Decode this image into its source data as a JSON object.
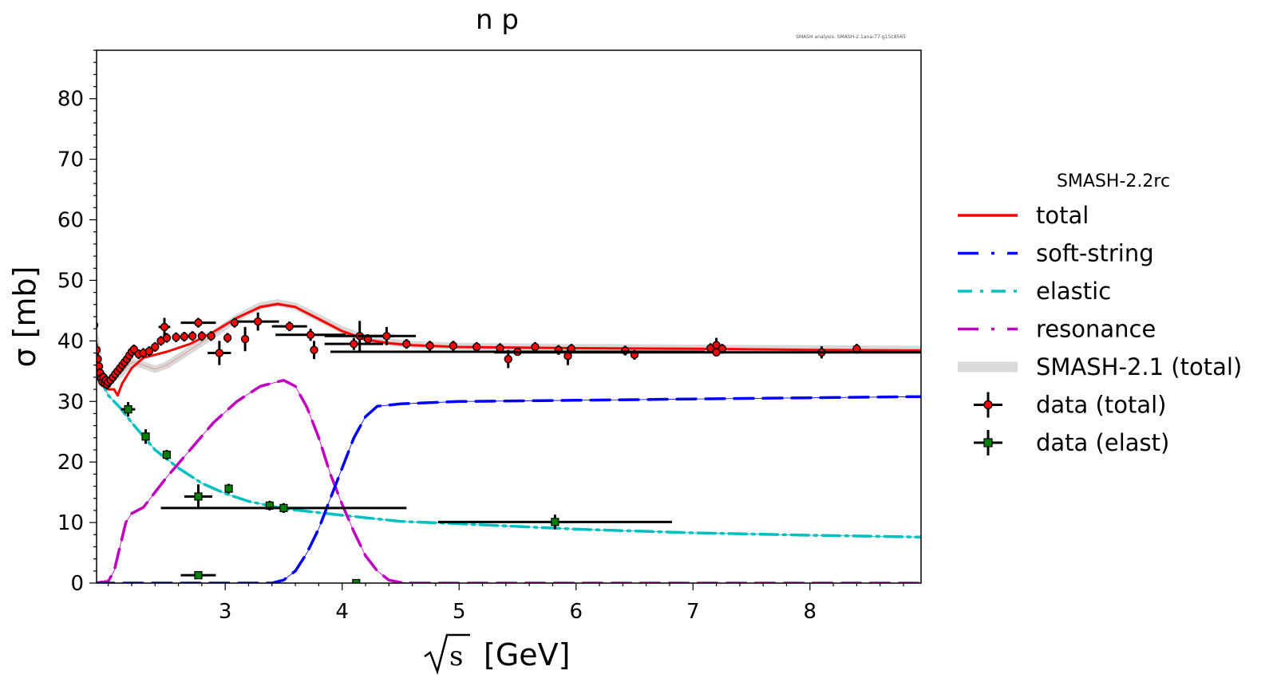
{
  "chart_data": {
    "type": "line",
    "title": "n p",
    "note": "SMASH analysis: SMASH-2.1ana-77-g15c8565",
    "xlabel": "[GeV]",
    "xlabel_symbol": "s",
    "ylabel": "σ [mb]",
    "xlim": [
      1.9,
      8.95
    ],
    "ylim": [
      0,
      88
    ],
    "x_ticks": [
      3,
      4,
      5,
      6,
      7,
      8
    ],
    "y_ticks": [
      0,
      10,
      20,
      30,
      40,
      50,
      60,
      70,
      80
    ],
    "legend_title": "SMASH-2.2rc",
    "legend_position": "outside-right",
    "series": [
      {
        "name": "total",
        "style": "solid",
        "color": "#ff0000",
        "points": [
          [
            1.885,
            41
          ],
          [
            1.95,
            33
          ],
          [
            2.0,
            32
          ],
          [
            2.05,
            32
          ],
          [
            2.08,
            31
          ],
          [
            2.12,
            33
          ],
          [
            2.2,
            35.5
          ],
          [
            2.3,
            37.2
          ],
          [
            2.5,
            38.2
          ],
          [
            2.7,
            39.5
          ],
          [
            2.9,
            41.5
          ],
          [
            3.1,
            43.8
          ],
          [
            3.3,
            45.6
          ],
          [
            3.45,
            46.1
          ],
          [
            3.6,
            45.6
          ],
          [
            3.8,
            43.6
          ],
          [
            4.0,
            41.6
          ],
          [
            4.2,
            40.2
          ],
          [
            4.4,
            39.6
          ],
          [
            4.6,
            39.3
          ],
          [
            5.0,
            39.0
          ],
          [
            6.0,
            38.8
          ],
          [
            7.0,
            38.7
          ],
          [
            8.0,
            38.5
          ],
          [
            8.95,
            38.4
          ]
        ]
      },
      {
        "name": "soft-string",
        "style": "dashed",
        "color": "#0000ff",
        "points": [
          [
            1.885,
            0
          ],
          [
            3.4,
            0
          ],
          [
            3.5,
            0.5
          ],
          [
            3.6,
            2
          ],
          [
            3.7,
            5
          ],
          [
            3.8,
            9
          ],
          [
            3.9,
            14
          ],
          [
            4.0,
            19
          ],
          [
            4.1,
            24
          ],
          [
            4.2,
            27.5
          ],
          [
            4.3,
            29.2
          ],
          [
            4.5,
            29.6
          ],
          [
            5.0,
            30.0
          ],
          [
            6.0,
            30.2
          ],
          [
            7.0,
            30.4
          ],
          [
            8.0,
            30.6
          ],
          [
            8.95,
            30.8
          ]
        ]
      },
      {
        "name": "elastic",
        "style": "dashdot",
        "color": "#00bfbf",
        "points": [
          [
            1.885,
            34
          ],
          [
            1.95,
            33
          ],
          [
            2.0,
            31
          ],
          [
            2.1,
            29
          ],
          [
            2.2,
            26.5
          ],
          [
            2.4,
            22
          ],
          [
            2.6,
            19
          ],
          [
            2.8,
            16.5
          ],
          [
            3.0,
            14.8
          ],
          [
            3.2,
            13.5
          ],
          [
            3.5,
            12.3
          ],
          [
            4.0,
            11.2
          ],
          [
            4.5,
            10.2
          ],
          [
            5.0,
            9.8
          ],
          [
            6.0,
            8.9
          ],
          [
            7.0,
            8.3
          ],
          [
            8.0,
            7.9
          ],
          [
            8.95,
            7.6
          ]
        ]
      },
      {
        "name": "resonance",
        "style": "dashed",
        "color": "#bf00bf",
        "points": [
          [
            1.885,
            0
          ],
          [
            2.0,
            0.3
          ],
          [
            2.05,
            2
          ],
          [
            2.1,
            6
          ],
          [
            2.15,
            10
          ],
          [
            2.2,
            11.5
          ],
          [
            2.3,
            12.5
          ],
          [
            2.5,
            17.5
          ],
          [
            2.7,
            22
          ],
          [
            2.9,
            26.5
          ],
          [
            3.1,
            30
          ],
          [
            3.3,
            32.5
          ],
          [
            3.5,
            33.5
          ],
          [
            3.6,
            32.5
          ],
          [
            3.7,
            29
          ],
          [
            3.8,
            24
          ],
          [
            3.9,
            18
          ],
          [
            4.0,
            13
          ],
          [
            4.1,
            8.5
          ],
          [
            4.2,
            4.5
          ],
          [
            4.3,
            2
          ],
          [
            4.4,
            0.5
          ],
          [
            4.5,
            0.1
          ],
          [
            4.6,
            0
          ],
          [
            8.95,
            0
          ]
        ]
      },
      {
        "name": "SMASH-2.1 (total)",
        "style": "band",
        "color": "#d9d9d9",
        "points": [
          [
            1.885,
            41
          ],
          [
            1.95,
            33
          ],
          [
            2.0,
            33.5
          ],
          [
            2.05,
            34
          ],
          [
            2.1,
            34.5
          ],
          [
            2.15,
            35.5
          ],
          [
            2.2,
            36.5
          ],
          [
            2.3,
            36
          ],
          [
            2.4,
            35.3
          ],
          [
            2.5,
            36
          ],
          [
            2.7,
            38.5
          ],
          [
            2.9,
            41
          ],
          [
            3.1,
            43.8
          ],
          [
            3.3,
            45.8
          ],
          [
            3.45,
            46.3
          ],
          [
            3.6,
            45.7
          ],
          [
            3.8,
            43.8
          ],
          [
            4.0,
            41.8
          ],
          [
            4.2,
            40.5
          ],
          [
            4.4,
            39.8
          ],
          [
            4.6,
            39.4
          ],
          [
            5.0,
            39.1
          ],
          [
            6.0,
            38.9
          ],
          [
            7.0,
            38.8
          ],
          [
            8.0,
            38.7
          ],
          [
            8.95,
            38.6
          ]
        ]
      }
    ],
    "data_total": {
      "name": "data (total)",
      "marker_color": "#ff0000",
      "points": [
        {
          "x": 1.88,
          "y": 42.6,
          "yerr": 1.0
        },
        {
          "x": 1.9,
          "y": 38.5,
          "yerr": 1.0
        },
        {
          "x": 1.91,
          "y": 37.0,
          "yerr": 1.0
        },
        {
          "x": 1.92,
          "y": 35.8,
          "yerr": 0.8
        },
        {
          "x": 1.93,
          "y": 34.7,
          "yerr": 0.8
        },
        {
          "x": 1.94,
          "y": 33.8,
          "yerr": 0.8
        },
        {
          "x": 1.95,
          "y": 33.2,
          "yerr": 0.8
        },
        {
          "x": 1.96,
          "y": 34.0,
          "yerr": 0.8
        },
        {
          "x": 1.97,
          "y": 33.0,
          "yerr": 0.8
        },
        {
          "x": 1.98,
          "y": 33.5,
          "yerr": 0.8
        },
        {
          "x": 1.99,
          "y": 32.8,
          "yerr": 0.8
        },
        {
          "x": 2.0,
          "y": 33.2,
          "yerr": 0.8
        },
        {
          "x": 2.02,
          "y": 33.5,
          "yerr": 0.8
        },
        {
          "x": 2.04,
          "y": 34.0,
          "yerr": 0.8
        },
        {
          "x": 2.06,
          "y": 34.5,
          "yerr": 0.8
        },
        {
          "x": 2.08,
          "y": 35.0,
          "yerr": 0.8
        },
        {
          "x": 2.1,
          "y": 35.5,
          "yerr": 0.8
        },
        {
          "x": 2.12,
          "y": 36.0,
          "yerr": 0.8
        },
        {
          "x": 2.14,
          "y": 36.5,
          "yerr": 0.8
        },
        {
          "x": 2.16,
          "y": 37.0,
          "yerr": 0.8
        },
        {
          "x": 2.18,
          "y": 37.6,
          "yerr": 0.8
        },
        {
          "x": 2.2,
          "y": 38.2,
          "yerr": 0.8
        },
        {
          "x": 2.22,
          "y": 38.6,
          "yerr": 0.8
        },
        {
          "x": 2.26,
          "y": 37.8,
          "yerr": 0.8
        },
        {
          "x": 2.3,
          "y": 38.0,
          "yerr": 0.8
        },
        {
          "x": 2.35,
          "y": 38.3,
          "yerr": 0.8
        },
        {
          "x": 2.4,
          "y": 39.0,
          "yerr": 0.8
        },
        {
          "x": 2.45,
          "y": 40.0,
          "yerr": 0.8
        },
        {
          "x": 2.5,
          "y": 40.5,
          "yerr": 0.8
        },
        {
          "x": 2.48,
          "y": 42.3,
          "yerr": 1.5,
          "xerr": 0.05
        },
        {
          "x": 2.58,
          "y": 40.6,
          "yerr": 0.8
        },
        {
          "x": 2.65,
          "y": 40.7,
          "yerr": 0.8
        },
        {
          "x": 2.72,
          "y": 40.8,
          "yerr": 0.8
        },
        {
          "x": 2.77,
          "y": 43.0,
          "yerr": 0.8,
          "xerr": 0.15
        },
        {
          "x": 2.8,
          "y": 40.8,
          "yerr": 0.8
        },
        {
          "x": 2.88,
          "y": 40.8,
          "yerr": 0.8
        },
        {
          "x": 2.95,
          "y": 38.0,
          "yerr": 2.0,
          "xerr": 0.1
        },
        {
          "x": 3.02,
          "y": 40.5,
          "yerr": 0.8
        },
        {
          "x": 3.08,
          "y": 43.0,
          "yerr": 0.8
        },
        {
          "x": 3.17,
          "y": 40.3,
          "yerr": 2.0
        },
        {
          "x": 3.28,
          "y": 43.2,
          "yerr": 1.5,
          "xerr": 0.18
        },
        {
          "x": 3.55,
          "y": 42.4,
          "yerr": 0.8,
          "xerr": 0.15
        },
        {
          "x": 3.73,
          "y": 41.0,
          "yerr": 1.0,
          "xerr": 0.3
        },
        {
          "x": 3.76,
          "y": 38.5,
          "yerr": 1.5
        },
        {
          "x": 4.1,
          "y": 39.5,
          "yerr": 1.0,
          "xerr": 0.25
        },
        {
          "x": 4.15,
          "y": 40.8,
          "yerr": 2.5,
          "xerr": 0.3
        },
        {
          "x": 4.22,
          "y": 40.3,
          "yerr": 0.8
        },
        {
          "x": 4.38,
          "y": 40.8,
          "yerr": 1.5,
          "xerr": 0.25
        },
        {
          "x": 4.55,
          "y": 39.5,
          "yerr": 0.8
        },
        {
          "x": 4.75,
          "y": 39.2,
          "yerr": 0.8
        },
        {
          "x": 4.95,
          "y": 39.2,
          "yerr": 0.8
        },
        {
          "x": 5.15,
          "y": 39.0,
          "yerr": 0.8
        },
        {
          "x": 5.35,
          "y": 38.8,
          "yerr": 0.8
        },
        {
          "x": 5.42,
          "y": 37.0,
          "yerr": 1.5
        },
        {
          "x": 5.65,
          "y": 39.0,
          "yerr": 0.8
        },
        {
          "x": 5.85,
          "y": 38.5,
          "yerr": 0.8
        },
        {
          "x": 5.93,
          "y": 37.5,
          "yerr": 1.5
        },
        {
          "x": 5.96,
          "y": 38.7,
          "yerr": 0.8
        },
        {
          "x": 6.42,
          "y": 38.4,
          "yerr": 0.8
        },
        {
          "x": 6.5,
          "y": 37.7,
          "yerr": 0.8
        },
        {
          "x": 7.15,
          "y": 38.8,
          "yerr": 0.8
        },
        {
          "x": 7.2,
          "y": 39.3,
          "yerr": 1.2
        },
        {
          "x": 7.25,
          "y": 38.7,
          "yerr": 0.8
        },
        {
          "x": 8.1,
          "y": 38.1,
          "yerr": 1.0
        },
        {
          "x": 8.4,
          "y": 38.7,
          "yerr": 0.8
        },
        {
          "x": 5.5,
          "y": 38.2,
          "yerr": 0.3,
          "xerr": 1.6
        },
        {
          "x": 7.2,
          "y": 38.1,
          "yerr": 0.3,
          "xerr": 1.9
        }
      ]
    },
    "data_elast": {
      "name": "data (elast)",
      "marker_color": "#008000",
      "points": [
        {
          "x": 2.17,
          "y": 28.7,
          "yerr": 1.2,
          "xerr": 0.06
        },
        {
          "x": 2.32,
          "y": 24.2,
          "yerr": 1.2
        },
        {
          "x": 2.5,
          "y": 21.2,
          "yerr": 0.8
        },
        {
          "x": 2.77,
          "y": 14.3,
          "yerr": 2.0,
          "xerr": 0.12
        },
        {
          "x": 3.03,
          "y": 15.6,
          "yerr": 0.8
        },
        {
          "x": 3.38,
          "y": 12.8,
          "yerr": 0.8
        },
        {
          "x": 3.5,
          "y": 12.4,
          "yerr": 0.8,
          "xerr": 1.05
        },
        {
          "x": 5.82,
          "y": 10.1,
          "yerr": 1.2,
          "xerr": 1.0
        },
        {
          "x": 2.77,
          "y": 1.3,
          "yerr": 0.5,
          "xerr": 0.15
        },
        {
          "x": 4.12,
          "y": 0.0,
          "yerr": 0.4
        }
      ]
    }
  }
}
